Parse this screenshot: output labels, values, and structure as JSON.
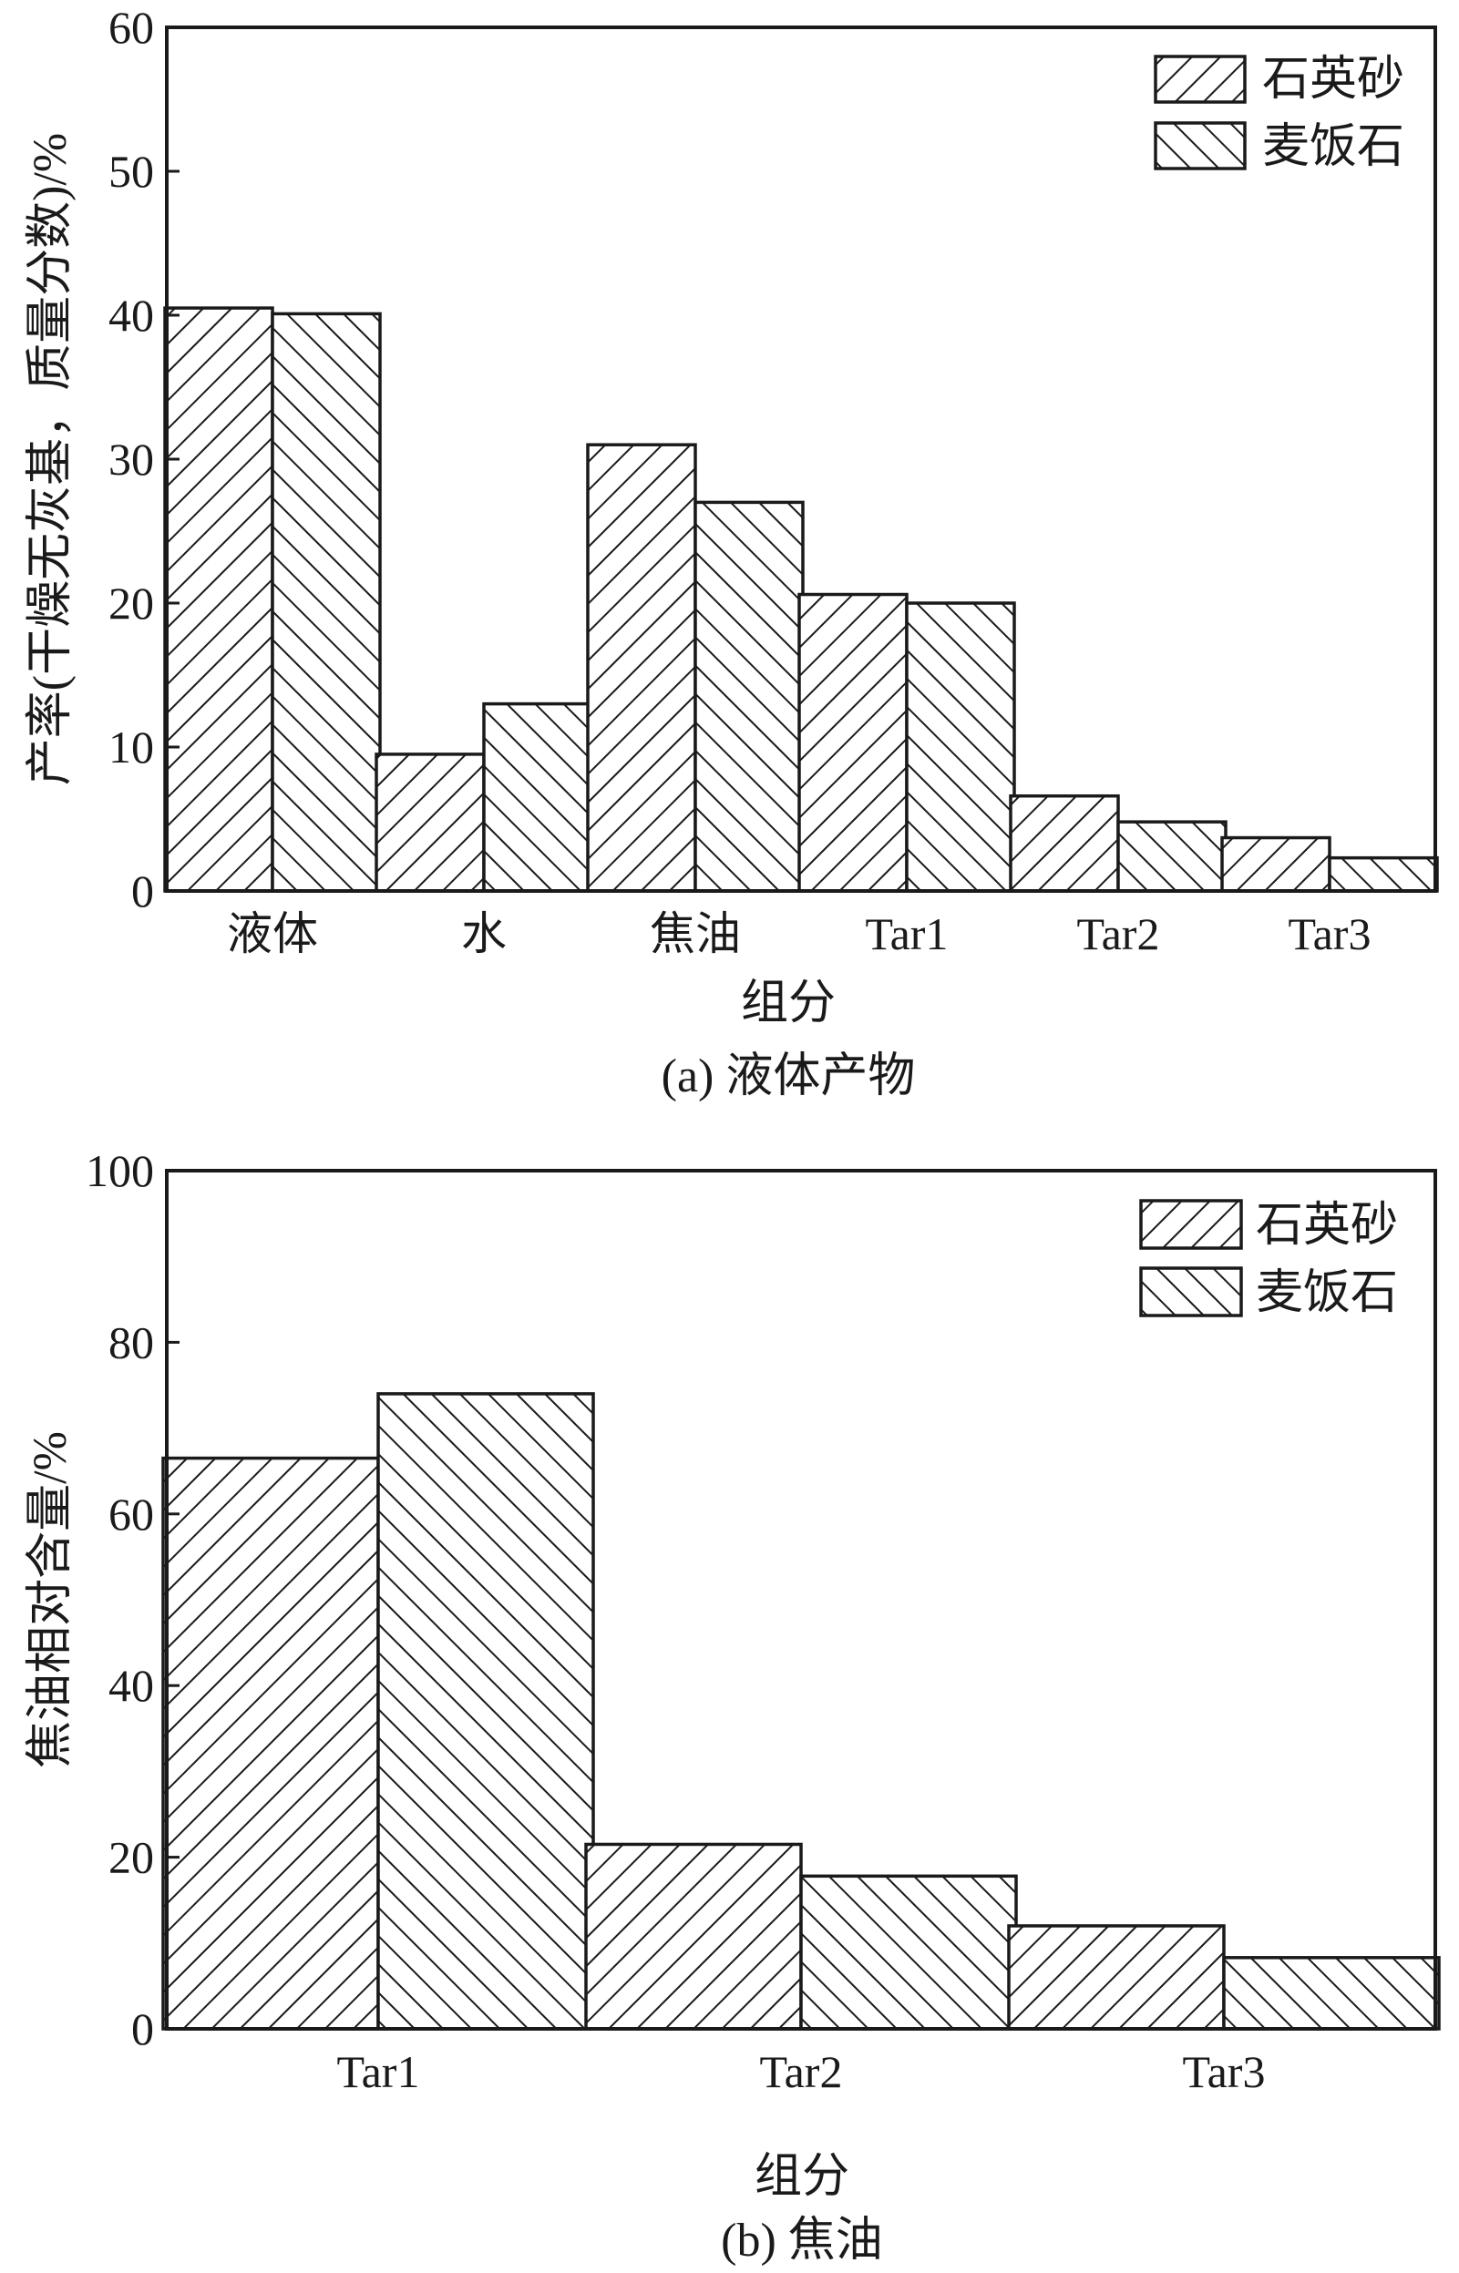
{
  "chart_data": [
    {
      "type": "bar",
      "caption": "(a) 液体产物",
      "xlabel": "组分",
      "ylabel": "产率(干燥无灰基，质量分数)/%",
      "ylim": [
        0,
        60
      ],
      "yticks": [
        0,
        10,
        20,
        30,
        40,
        50,
        60
      ],
      "categories": [
        "液体",
        "水",
        "焦油",
        "Tar1",
        "Tar2",
        "Tar3"
      ],
      "legend_position": "top-right",
      "series": [
        {
          "name": "石英砂",
          "pattern": "forward-hatch",
          "values": [
            40.5,
            9.5,
            31.0,
            20.6,
            6.6,
            3.7
          ]
        },
        {
          "name": "麦饭石",
          "pattern": "backward-hatch",
          "values": [
            40.1,
            13.0,
            27.0,
            20.0,
            4.8,
            2.3
          ]
        }
      ]
    },
    {
      "type": "bar",
      "caption": "(b) 焦油",
      "xlabel": "组分",
      "ylabel": "焦油相对含量/%",
      "ylim": [
        0,
        100
      ],
      "yticks": [
        0,
        20,
        40,
        60,
        80,
        100
      ],
      "categories": [
        "Tar1",
        "Tar2",
        "Tar3"
      ],
      "legend_position": "top-right",
      "series": [
        {
          "name": "石英砂",
          "pattern": "forward-hatch",
          "values": [
            66.5,
            21.5,
            12.0
          ]
        },
        {
          "name": "麦饭石",
          "pattern": "backward-hatch",
          "values": [
            74.0,
            17.8,
            8.3
          ]
        }
      ]
    }
  ],
  "colors": {
    "ink": "#1a1a1a",
    "background": "#ffffff"
  }
}
